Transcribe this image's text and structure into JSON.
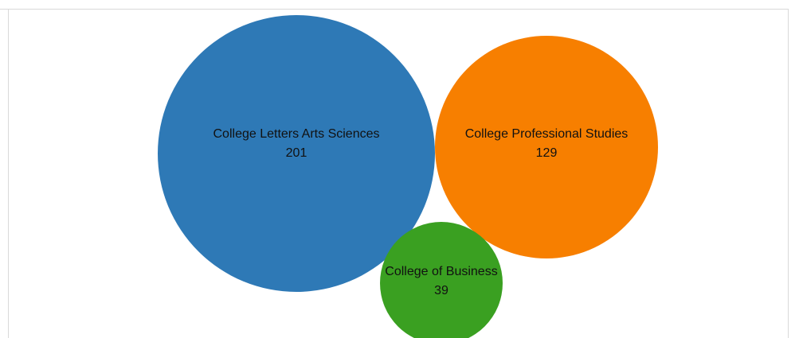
{
  "chart_data": {
    "type": "bubble",
    "title": "",
    "series": [
      {
        "name": "College Letters Arts Sciences",
        "value": 201,
        "color": "#2e79b6"
      },
      {
        "name": "College Professional Studies",
        "value": 129,
        "color": "#f77f00"
      },
      {
        "name": "College of Business",
        "value": 39,
        "color": "#3aa021"
      }
    ]
  }
}
